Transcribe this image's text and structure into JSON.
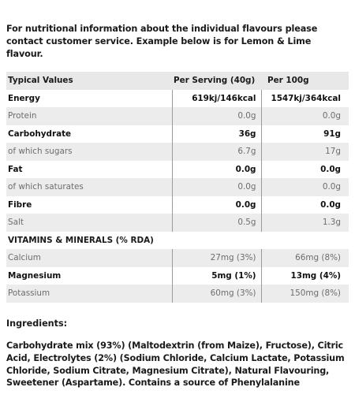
{
  "intro": "For nutritional information about the individual flavours please contact customer service. Example below is for Lemon & Lime flavour.",
  "table": {
    "headers": [
      "Typical Values",
      "Per Serving (40g)",
      "Per 100g"
    ],
    "rows": [
      {
        "name": "Energy",
        "serving": "619kj/146kcal",
        "per100": "1547kj/364kcal",
        "style": "major"
      },
      {
        "name": "Protein",
        "serving": "0.0g",
        "per100": "0.0g",
        "style": "minor"
      },
      {
        "name": "Carbohydrate",
        "serving": "36g",
        "per100": "91g",
        "style": "major"
      },
      {
        "name": "of which sugars",
        "serving": "6.7g",
        "per100": "17g",
        "style": "minor"
      },
      {
        "name": "Fat",
        "serving": "0.0g",
        "per100": "0.0g",
        "style": "major"
      },
      {
        "name": "of which saturates",
        "serving": "0.0g",
        "per100": "0.0g",
        "style": "minor"
      },
      {
        "name": "Fibre",
        "serving": "0.0g",
        "per100": "0.0g",
        "style": "major"
      },
      {
        "name": "Salt",
        "serving": "0.5g",
        "per100": "1.3g",
        "style": "minor"
      },
      {
        "name": "VITAMINS & MINERALS (% RDA)",
        "serving": "",
        "per100": "",
        "style": "section"
      },
      {
        "name": "Calcium",
        "serving": "27mg (3%)",
        "per100": "66mg (8%)",
        "style": "minor"
      },
      {
        "name": "Magnesium",
        "serving": "5mg (1%)",
        "per100": "13mg (4%)",
        "style": "major"
      },
      {
        "name": "Potassium",
        "serving": "60mg (3%)",
        "per100": "150mg (8%)",
        "style": "minor"
      }
    ]
  },
  "ingredients": {
    "title": "Ingredients:",
    "text": "Carbohydrate mix (93%) (Maltodextrin (from Maize), Fructose), Citric Acid, Electrolytes (2%) (Sodium Chloride, Calcium Lactate, Potassium Chloride, Sodium Citrate, Magnesium Citrate), Natural Flavouring, Sweetener (Aspartame). Contains a source of Phenylalanine"
  }
}
